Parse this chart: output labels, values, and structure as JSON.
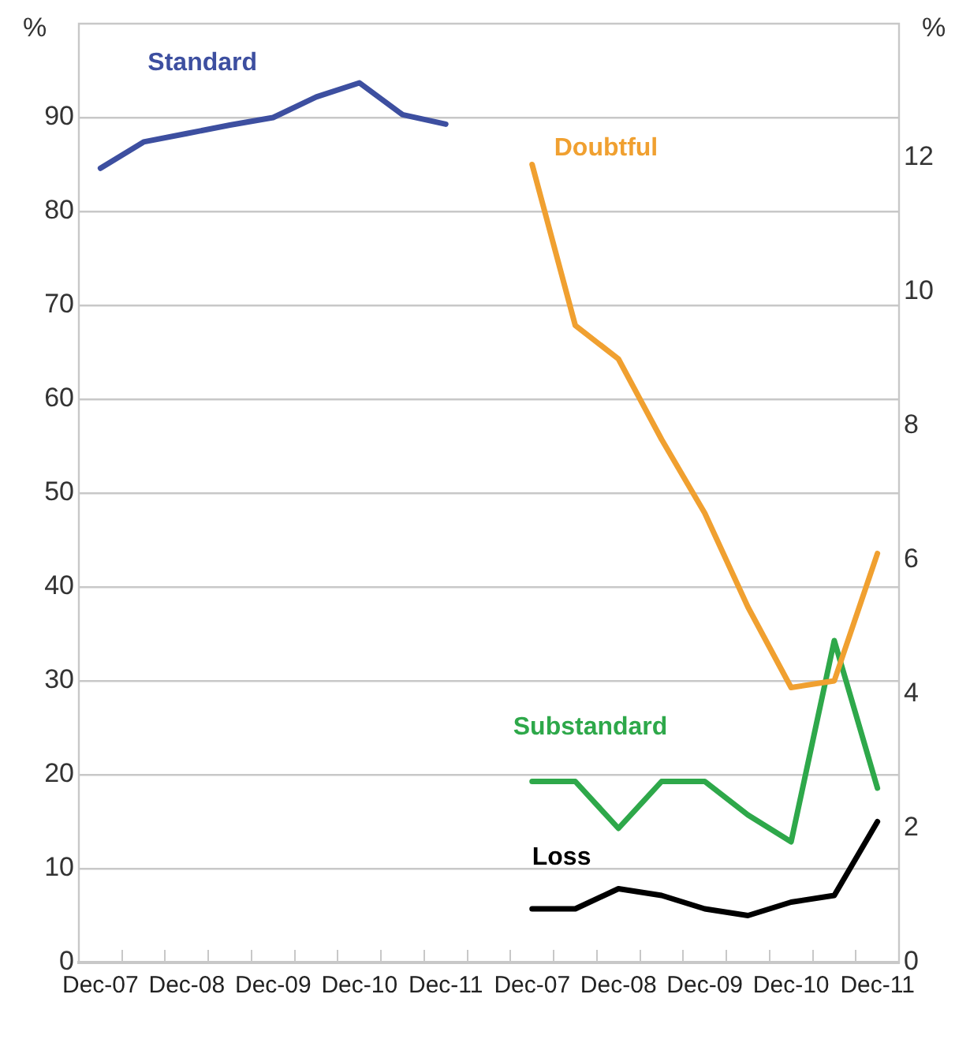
{
  "chart_data": {
    "type": "line",
    "categories": [
      "Dec-07",
      null,
      "Dec-08",
      null,
      "Dec-09",
      null,
      "Dec-10",
      null,
      "Dec-11",
      null,
      "Dec-07",
      null,
      "Dec-08",
      null,
      "Dec-09",
      null,
      "Dec-10",
      null,
      "Dec-11"
    ],
    "series": [
      {
        "name": "Standard",
        "color": "#3d4fa0",
        "values": [
          84.6,
          87.4,
          88.3,
          89.2,
          90.0,
          92.2,
          93.7,
          90.3,
          89.3,
          null,
          null,
          null,
          null,
          null,
          null,
          null,
          null,
          null,
          null
        ]
      },
      {
        "name": "Doubtful",
        "color": "#f0a030",
        "axis": "y2",
        "values": [
          null,
          null,
          null,
          null,
          null,
          null,
          null,
          null,
          null,
          null,
          11.9,
          9.5,
          9.0,
          7.8,
          6.7,
          5.3,
          4.1,
          4.2,
          6.1
        ]
      },
      {
        "name": "Substandard",
        "color": "#2ea84a",
        "axis": "y2",
        "values": [
          null,
          null,
          null,
          null,
          null,
          null,
          null,
          null,
          null,
          null,
          2.7,
          2.7,
          2.0,
          2.7,
          2.7,
          2.2,
          1.8,
          4.8,
          2.6
        ]
      },
      {
        "name": "Loss",
        "color": "#000000",
        "axis": "y2",
        "values": [
          null,
          null,
          null,
          null,
          null,
          null,
          null,
          null,
          null,
          null,
          0.8,
          0.8,
          1.1,
          1.0,
          0.8,
          0.7,
          0.9,
          1.0,
          2.1
        ]
      }
    ],
    "ylabel": "%",
    "y2label": "%",
    "ylim": [
      0,
      100
    ],
    "yticks": [
      0,
      10,
      20,
      30,
      40,
      50,
      60,
      70,
      80,
      90
    ],
    "y2lim": [
      0,
      14
    ],
    "y2ticks": [
      0,
      2,
      4,
      6,
      8,
      10,
      12
    ],
    "grid": "y",
    "legend": false,
    "marker": "none",
    "line_style": "solid"
  }
}
